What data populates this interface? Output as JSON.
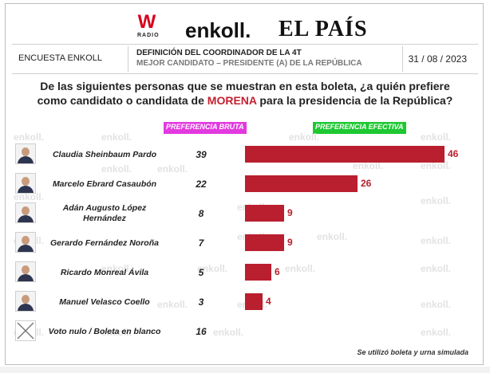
{
  "logos": {
    "w_text": "W",
    "w_sub": "RADIO",
    "enkoll": "enkoll.",
    "elpais": "EL PAÍS"
  },
  "header": {
    "left": "ENCUESTA ENKOLL",
    "title_line1": "DEFINICIÓN DEL COORDINADOR DE LA 4T",
    "title_line2": "MEJOR CANDIDATO – PRESIDENTE (A) DE LA REPÚBLICA",
    "date": "31 / 08 / 2023"
  },
  "question": {
    "line1": "De las siguientes personas que se muestran en esta boleta, ¿a quién prefiere",
    "line2_pre": "como candidato o candidata de ",
    "line2_highlight": "MORENA",
    "line2_post": " para la presidencia de la República?"
  },
  "watermark": "enkoll.",
  "colors": {
    "bar": "#b91f2e",
    "bruta_label": "#e23adf",
    "efectiva_label": "#1ec832"
  },
  "chart_data": {
    "type": "bar",
    "orientation": "horizontal",
    "column_labels": {
      "bruta": "PREFERENCIA BRUTA",
      "efectiva": "PREFERENCIA EFECTIVA"
    },
    "rows": [
      {
        "name_l1": "Claudia Sheinbaum Pardo",
        "name_l2": "",
        "bruta": "39",
        "efectiva": 46,
        "efectiva_label": "46"
      },
      {
        "name_l1": "Marcelo Ebrard Casaubón",
        "name_l2": "",
        "bruta": "22",
        "efectiva": 26,
        "efectiva_label": "26"
      },
      {
        "name_l1": "Adán Augusto López",
        "name_l2": "Hernández",
        "bruta": "8",
        "efectiva": 9,
        "efectiva_label": "9"
      },
      {
        "name_l1": "Gerardo Fernández Noroña",
        "name_l2": "",
        "bruta": "7",
        "efectiva": 9,
        "efectiva_label": "9"
      },
      {
        "name_l1": "Ricardo Monreal Ávila",
        "name_l2": "",
        "bruta": "5",
        "efectiva": 6,
        "efectiva_label": "6"
      },
      {
        "name_l1": "Manuel Velasco Coello",
        "name_l2": "",
        "bruta": "3",
        "efectiva": 4,
        "efectiva_label": "4"
      },
      {
        "name_l1": "Voto nulo / Boleta en blanco",
        "name_l2": "",
        "bruta": "16",
        "efectiva": null,
        "efectiva_label": ""
      }
    ],
    "note": "Se utilizó boleta y urna simulada"
  }
}
